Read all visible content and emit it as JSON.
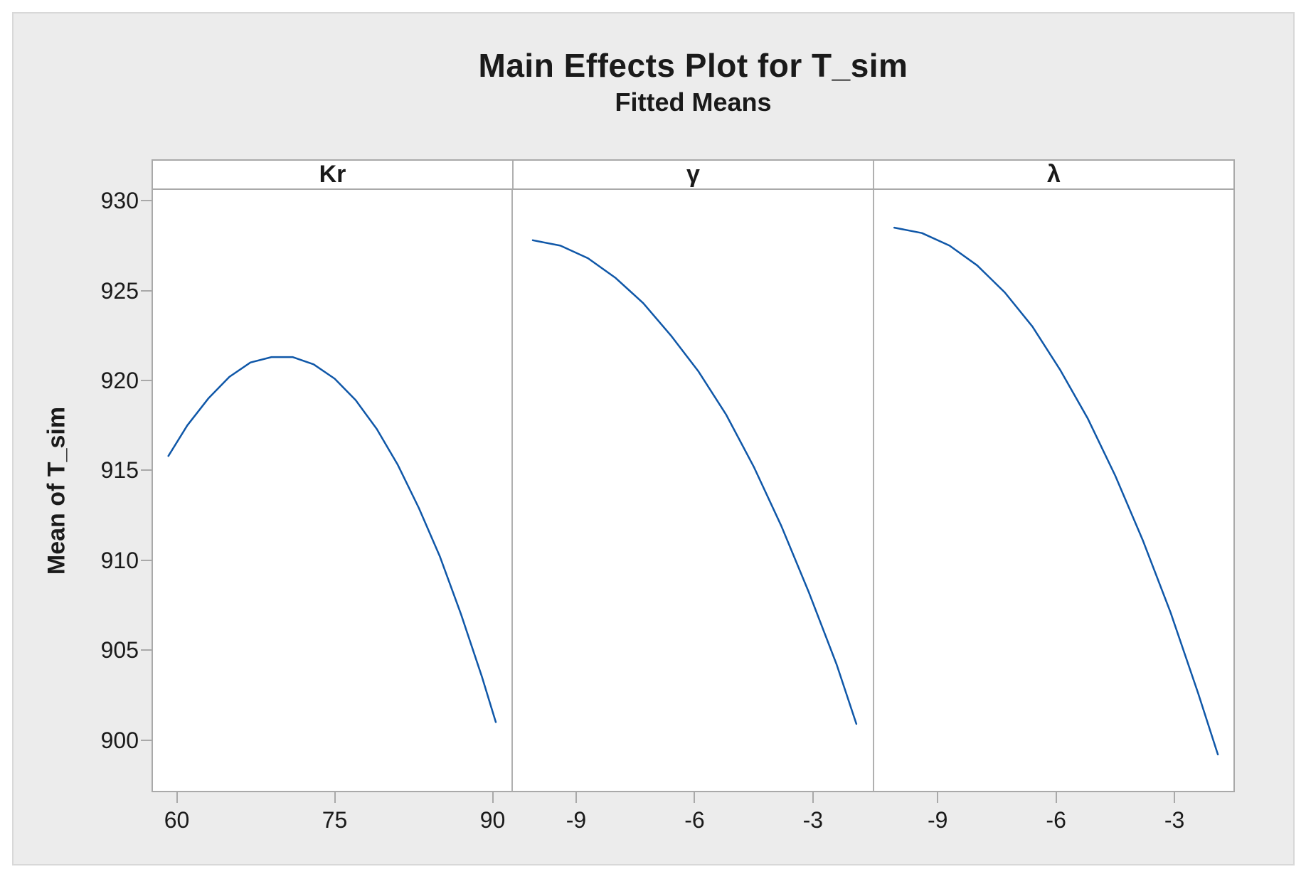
{
  "window": {
    "title": "Main Effects Plot for T_sim"
  },
  "chart_data": {
    "type": "line",
    "title": "Main Effects Plot for T_sim",
    "subtitle": "Fitted Means",
    "ylabel": "Mean of T_sim",
    "ylim": [
      897.1,
      930.6
    ],
    "y_ticks": [
      930,
      925,
      920,
      915,
      910,
      905,
      900
    ],
    "grid": false,
    "legend": "none",
    "colors": {
      "line": "#0f57a8",
      "canvas_bg": "#ececec",
      "plot_bg": "#ffffff",
      "border": "#a9a9a9",
      "text": "#1a1a1a"
    },
    "panels": [
      {
        "label": "Kr",
        "x_ticks": [
          60,
          75,
          90
        ],
        "xlim": [
          57.6,
          91.9
        ],
        "x": [
          59.2,
          61,
          63,
          65,
          67,
          69,
          71,
          73,
          75,
          77,
          79,
          81,
          83,
          85,
          87,
          89,
          90.3
        ],
        "y": [
          915.8,
          917.5,
          919.0,
          920.2,
          921.0,
          921.3,
          921.3,
          920.9,
          920.1,
          918.9,
          917.3,
          915.3,
          912.9,
          910.2,
          907.0,
          903.5,
          901.0
        ]
      },
      {
        "label": "γ",
        "x_ticks": [
          -9,
          -6,
          -3
        ],
        "xlim": [
          -10.61,
          -1.46
        ],
        "x": [
          -10.1,
          -9.4,
          -8.7,
          -8.0,
          -7.3,
          -6.6,
          -5.9,
          -5.2,
          -4.5,
          -3.8,
          -3.1,
          -2.4,
          -1.9
        ],
        "y": [
          927.8,
          927.5,
          926.8,
          925.7,
          924.3,
          922.5,
          920.5,
          918.1,
          915.2,
          911.9,
          908.2,
          904.2,
          900.9
        ]
      },
      {
        "label": "λ",
        "x_ticks": [
          -9,
          -6,
          -3
        ],
        "xlim": [
          -10.62,
          -1.47
        ],
        "x": [
          -10.1,
          -9.4,
          -8.7,
          -8.0,
          -7.3,
          -6.6,
          -5.9,
          -5.2,
          -4.5,
          -3.8,
          -3.1,
          -2.4,
          -1.9
        ],
        "y": [
          928.5,
          928.2,
          927.5,
          926.4,
          924.9,
          923.0,
          920.6,
          917.9,
          914.7,
          911.1,
          907.1,
          902.6,
          899.2
        ]
      }
    ]
  }
}
